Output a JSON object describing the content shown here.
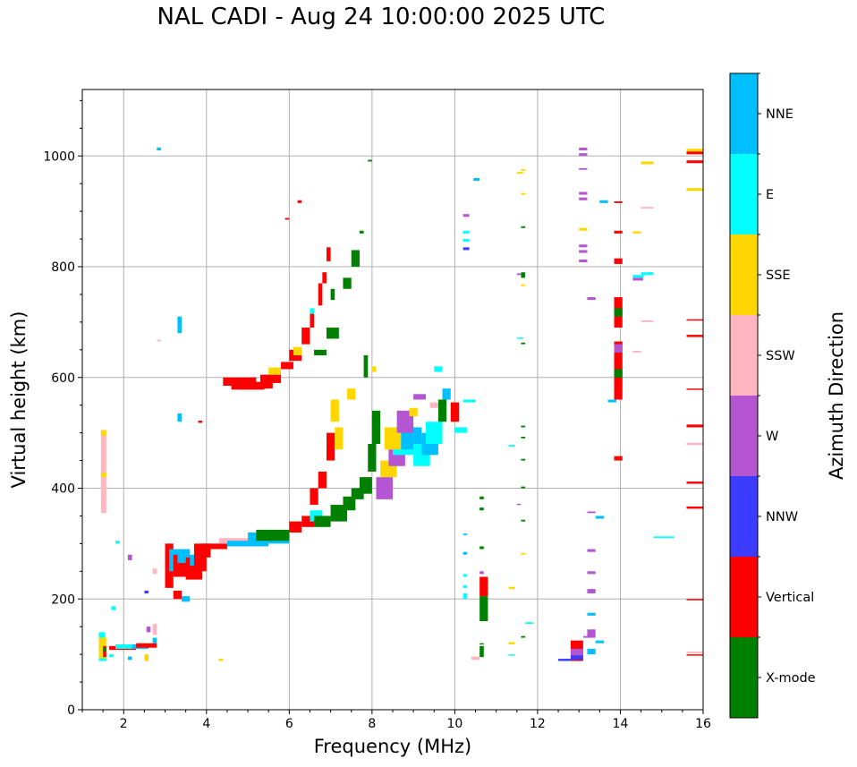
{
  "chart_data": {
    "type": "scatter",
    "subtype": "ionogram",
    "title": "NAL CADI - Aug 24 10:00:00 2025 UTC",
    "xlabel": "Frequency (MHz)",
    "ylabel": "Virtual height (km)",
    "xlim": [
      1,
      16
    ],
    "ylim": [
      0,
      1120
    ],
    "xticks": [
      2,
      4,
      6,
      8,
      10,
      12,
      14,
      16
    ],
    "yticks": [
      0,
      200,
      400,
      600,
      800,
      1000
    ],
    "x_minor_step": 0.5,
    "y_minor_step": 50,
    "grid": true,
    "colorbar": {
      "label": "Azimuth Direction",
      "placement": "right",
      "categories": [
        {
          "key": "X",
          "name": "X-mode",
          "color": "#008000"
        },
        {
          "key": "V",
          "name": "Vertical",
          "color": "#ff0000"
        },
        {
          "key": "N",
          "name": "NNW",
          "color": "#3c3cff"
        },
        {
          "key": "W",
          "name": "W",
          "color": "#b455d2"
        },
        {
          "key": "S",
          "name": "SSW",
          "color": "#ffb6c1"
        },
        {
          "key": "Y",
          "name": "SSE",
          "color": "#ffd700"
        },
        {
          "key": "E",
          "name": "E",
          "color": "#00ffff"
        },
        {
          "key": "B",
          "name": "NNE",
          "color": "#00bfff"
        }
      ]
    },
    "echo_format": "[freq_start_MHz, freq_end_MHz, height_low_km, height_high_km, direction_key]",
    "echoes": [
      [
        1.45,
        1.58,
        440,
        505,
        "S"
      ],
      [
        1.45,
        1.58,
        495,
        505,
        "Y"
      ],
      [
        1.45,
        1.58,
        355,
        440,
        "S"
      ],
      [
        1.45,
        1.58,
        420,
        428,
        "Y"
      ],
      [
        1.4,
        1.55,
        130,
        140,
        "E"
      ],
      [
        1.4,
        1.58,
        90,
        130,
        "Y"
      ],
      [
        1.5,
        1.58,
        95,
        115,
        "V"
      ],
      [
        1.5,
        1.58,
        105,
        112,
        "X"
      ],
      [
        1.4,
        1.58,
        88,
        93,
        "E"
      ],
      [
        1.65,
        2.3,
        108,
        115,
        "V"
      ],
      [
        1.65,
        1.75,
        95,
        100,
        "E"
      ],
      [
        1.8,
        2.2,
        110,
        118,
        "E"
      ],
      [
        2.2,
        2.6,
        110,
        118,
        "B"
      ],
      [
        2.3,
        2.8,
        112,
        120,
        "V"
      ],
      [
        2.5,
        2.6,
        88,
        100,
        "Y"
      ],
      [
        2.7,
        2.8,
        135,
        155,
        "S"
      ],
      [
        2.7,
        2.8,
        120,
        130,
        "B"
      ],
      [
        2.55,
        2.65,
        140,
        150,
        "W"
      ],
      [
        2.1,
        2.2,
        90,
        96,
        "B"
      ],
      [
        1.7,
        1.8,
        180,
        187,
        "E"
      ],
      [
        1.8,
        1.9,
        300,
        305,
        "E"
      ],
      [
        2.1,
        2.2,
        270,
        280,
        "W"
      ],
      [
        2.5,
        2.6,
        210,
        215,
        "N"
      ],
      [
        2.7,
        2.8,
        245,
        255,
        "S"
      ],
      [
        2.8,
        2.9,
        1010,
        1015,
        "B"
      ],
      [
        2.8,
        2.9,
        665,
        668,
        "S"
      ],
      [
        3.0,
        3.2,
        220,
        300,
        "V"
      ],
      [
        3.1,
        3.3,
        250,
        290,
        "B"
      ],
      [
        3.2,
        3.6,
        240,
        280,
        "V"
      ],
      [
        3.3,
        3.6,
        265,
        290,
        "B"
      ],
      [
        3.5,
        3.9,
        235,
        275,
        "V"
      ],
      [
        3.6,
        3.8,
        260,
        280,
        "B"
      ],
      [
        3.7,
        4.0,
        250,
        300,
        "V"
      ],
      [
        3.9,
        4.1,
        275,
        300,
        "V"
      ],
      [
        3.2,
        3.4,
        200,
        215,
        "V"
      ],
      [
        3.4,
        3.6,
        195,
        205,
        "B"
      ],
      [
        3.3,
        3.4,
        680,
        710,
        "B"
      ],
      [
        3.3,
        3.4,
        520,
        535,
        "B"
      ],
      [
        3.8,
        3.9,
        518,
        522,
        "V"
      ],
      [
        4.3,
        4.4,
        88,
        92,
        "Y"
      ],
      [
        4.0,
        4.5,
        290,
        300,
        "V"
      ],
      [
        4.3,
        5.0,
        300,
        310,
        "S"
      ],
      [
        4.5,
        5.5,
        295,
        305,
        "B"
      ],
      [
        5.0,
        6.0,
        300,
        320,
        "B"
      ],
      [
        5.2,
        6.0,
        305,
        325,
        "X"
      ],
      [
        4.4,
        5.2,
        585,
        600,
        "V"
      ],
      [
        4.6,
        5.4,
        578,
        590,
        "V"
      ],
      [
        5.0,
        5.6,
        580,
        592,
        "V"
      ],
      [
        5.3,
        5.8,
        590,
        605,
        "V"
      ],
      [
        5.5,
        5.8,
        605,
        618,
        "Y"
      ],
      [
        5.8,
        6.1,
        615,
        628,
        "V"
      ],
      [
        6.0,
        6.3,
        630,
        650,
        "V"
      ],
      [
        6.1,
        6.3,
        640,
        655,
        "Y"
      ],
      [
        6.3,
        6.5,
        660,
        690,
        "V"
      ],
      [
        6.5,
        6.6,
        690,
        715,
        "V"
      ],
      [
        6.5,
        6.6,
        715,
        725,
        "E"
      ],
      [
        6.7,
        6.8,
        730,
        770,
        "V"
      ],
      [
        6.8,
        6.9,
        770,
        790,
        "V"
      ],
      [
        6.9,
        7.0,
        810,
        835,
        "V"
      ],
      [
        6.2,
        6.3,
        915,
        920,
        "V"
      ],
      [
        5.9,
        6.0,
        885,
        888,
        "V"
      ],
      [
        7.0,
        7.1,
        740,
        760,
        "X"
      ],
      [
        7.3,
        7.5,
        760,
        780,
        "X"
      ],
      [
        7.5,
        7.7,
        800,
        830,
        "X"
      ],
      [
        7.7,
        7.8,
        860,
        865,
        "X"
      ],
      [
        7.9,
        8.0,
        990,
        993,
        "X"
      ],
      [
        6.6,
        6.9,
        640,
        650,
        "X"
      ],
      [
        6.9,
        7.2,
        670,
        690,
        "X"
      ],
      [
        6.0,
        6.3,
        320,
        340,
        "V"
      ],
      [
        6.3,
        6.6,
        330,
        350,
        "V"
      ],
      [
        6.5,
        6.8,
        340,
        360,
        "E"
      ],
      [
        6.6,
        7.0,
        330,
        350,
        "X"
      ],
      [
        7.0,
        7.4,
        340,
        370,
        "X"
      ],
      [
        7.3,
        7.6,
        360,
        385,
        "X"
      ],
      [
        7.5,
        7.8,
        380,
        400,
        "X"
      ],
      [
        7.7,
        8.0,
        390,
        420,
        "X"
      ],
      [
        7.9,
        8.1,
        430,
        480,
        "X"
      ],
      [
        8.0,
        8.2,
        480,
        540,
        "X"
      ],
      [
        6.5,
        6.7,
        370,
        400,
        "V"
      ],
      [
        6.7,
        6.9,
        400,
        430,
        "V"
      ],
      [
        6.9,
        7.1,
        450,
        500,
        "V"
      ],
      [
        7.0,
        7.2,
        520,
        560,
        "Y"
      ],
      [
        7.1,
        7.3,
        470,
        510,
        "Y"
      ],
      [
        7.4,
        7.6,
        560,
        580,
        "Y"
      ],
      [
        7.8,
        7.9,
        600,
        640,
        "X"
      ],
      [
        8.0,
        8.1,
        610,
        620,
        "Y"
      ],
      [
        8.1,
        8.5,
        380,
        420,
        "W"
      ],
      [
        8.2,
        8.6,
        420,
        450,
        "Y"
      ],
      [
        8.4,
        8.8,
        440,
        470,
        "W"
      ],
      [
        8.5,
        9.0,
        460,
        500,
        "E"
      ],
      [
        8.7,
        9.2,
        470,
        510,
        "B"
      ],
      [
        8.3,
        8.7,
        470,
        510,
        "Y"
      ],
      [
        8.6,
        9.0,
        500,
        540,
        "W"
      ],
      [
        9.0,
        9.4,
        440,
        480,
        "E"
      ],
      [
        9.2,
        9.6,
        460,
        500,
        "B"
      ],
      [
        9.3,
        9.7,
        480,
        520,
        "E"
      ],
      [
        8.9,
        9.1,
        530,
        545,
        "Y"
      ],
      [
        9.0,
        9.3,
        560,
        570,
        "W"
      ],
      [
        9.5,
        9.7,
        610,
        620,
        "E"
      ],
      [
        9.7,
        9.9,
        560,
        580,
        "B"
      ],
      [
        9.6,
        9.8,
        520,
        560,
        "X"
      ],
      [
        9.4,
        9.6,
        545,
        555,
        "S"
      ],
      [
        9.9,
        10.1,
        520,
        555,
        "V"
      ],
      [
        10.2,
        10.5,
        555,
        560,
        "E"
      ],
      [
        10.0,
        10.3,
        500,
        510,
        "E"
      ],
      [
        10.6,
        10.7,
        380,
        385,
        "X"
      ],
      [
        10.6,
        10.7,
        360,
        365,
        "X"
      ],
      [
        10.6,
        10.7,
        290,
        295,
        "X"
      ],
      [
        10.6,
        10.7,
        245,
        250,
        "W"
      ],
      [
        10.6,
        10.8,
        205,
        240,
        "V"
      ],
      [
        10.6,
        10.8,
        160,
        205,
        "X"
      ],
      [
        10.6,
        10.7,
        118,
        120,
        "X"
      ],
      [
        10.6,
        10.7,
        95,
        115,
        "X"
      ],
      [
        10.4,
        10.6,
        90,
        96,
        "S"
      ],
      [
        10.2,
        10.3,
        315,
        318,
        "B"
      ],
      [
        10.2,
        10.3,
        280,
        285,
        "B"
      ],
      [
        10.2,
        10.3,
        240,
        245,
        "E"
      ],
      [
        10.2,
        10.3,
        220,
        225,
        "E"
      ],
      [
        10.2,
        10.3,
        200,
        210,
        "E"
      ],
      [
        10.2,
        10.35,
        860,
        865,
        "E"
      ],
      [
        10.2,
        10.35,
        845,
        850,
        "E"
      ],
      [
        10.2,
        10.35,
        830,
        835,
        "N"
      ],
      [
        10.2,
        10.35,
        890,
        895,
        "W"
      ],
      [
        10.45,
        10.6,
        955,
        960,
        "B"
      ],
      [
        11.3,
        11.45,
        475,
        478,
        "E"
      ],
      [
        11.3,
        11.45,
        218,
        222,
        "Y"
      ],
      [
        11.3,
        11.45,
        118,
        122,
        "Y"
      ],
      [
        11.3,
        11.45,
        98,
        100,
        "E"
      ],
      [
        11.5,
        11.65,
        670,
        672,
        "E"
      ],
      [
        11.5,
        11.6,
        370,
        372,
        "W"
      ],
      [
        11.6,
        11.7,
        765,
        768,
        "Y"
      ],
      [
        11.6,
        11.7,
        780,
        790,
        "X"
      ],
      [
        11.6,
        11.7,
        870,
        873,
        "X"
      ],
      [
        11.6,
        11.7,
        930,
        933,
        "Y"
      ],
      [
        11.6,
        11.7,
        973,
        976,
        "Y"
      ],
      [
        11.5,
        11.65,
        968,
        971,
        "Y"
      ],
      [
        11.5,
        11.6,
        785,
        788,
        "W"
      ],
      [
        11.6,
        11.7,
        660,
        663,
        "X"
      ],
      [
        11.6,
        11.7,
        510,
        513,
        "X"
      ],
      [
        11.6,
        11.7,
        490,
        493,
        "X"
      ],
      [
        11.6,
        11.7,
        450,
        453,
        "X"
      ],
      [
        11.6,
        11.7,
        400,
        403,
        "X"
      ],
      [
        11.6,
        11.7,
        340,
        343,
        "X"
      ],
      [
        11.6,
        11.7,
        280,
        283,
        "Y"
      ],
      [
        11.6,
        11.7,
        130,
        133,
        "X"
      ],
      [
        11.7,
        11.9,
        155,
        158,
        "E"
      ],
      [
        12.5,
        12.8,
        88,
        92,
        "N"
      ],
      [
        12.8,
        13.1,
        88,
        125,
        "V"
      ],
      [
        12.8,
        13.1,
        98,
        110,
        "W"
      ],
      [
        12.8,
        13.1,
        90,
        98,
        "N"
      ],
      [
        13.0,
        13.2,
        1010,
        1015,
        "W"
      ],
      [
        13.0,
        13.2,
        1000,
        1005,
        "W"
      ],
      [
        13.0,
        13.2,
        975,
        978,
        "W"
      ],
      [
        13.0,
        13.2,
        930,
        935,
        "W"
      ],
      [
        13.0,
        13.2,
        920,
        925,
        "W"
      ],
      [
        13.0,
        13.2,
        865,
        870,
        "Y"
      ],
      [
        13.0,
        13.2,
        835,
        840,
        "W"
      ],
      [
        13.0,
        13.2,
        825,
        830,
        "W"
      ],
      [
        13.0,
        13.2,
        808,
        813,
        "W"
      ],
      [
        13.2,
        13.4,
        740,
        745,
        "W"
      ],
      [
        13.2,
        13.4,
        355,
        358,
        "W"
      ],
      [
        13.2,
        13.4,
        285,
        290,
        "W"
      ],
      [
        13.2,
        13.4,
        245,
        250,
        "W"
      ],
      [
        13.2,
        13.4,
        210,
        218,
        "W"
      ],
      [
        13.2,
        13.4,
        170,
        175,
        "B"
      ],
      [
        13.2,
        13.4,
        130,
        145,
        "W"
      ],
      [
        13.2,
        13.4,
        100,
        110,
        "B"
      ],
      [
        13.4,
        13.6,
        345,
        350,
        "B"
      ],
      [
        13.4,
        13.6,
        120,
        125,
        "B"
      ],
      [
        13.1,
        13.3,
        130,
        133,
        "W"
      ],
      [
        13.5,
        13.7,
        915,
        920,
        "B"
      ],
      [
        13.7,
        13.9,
        555,
        560,
        "B"
      ],
      [
        13.85,
        14.05,
        690,
        745,
        "V"
      ],
      [
        13.85,
        14.05,
        710,
        725,
        "X"
      ],
      [
        13.85,
        14.05,
        560,
        665,
        "V"
      ],
      [
        13.85,
        14.05,
        600,
        615,
        "X"
      ],
      [
        13.85,
        14.05,
        645,
        660,
        "W"
      ],
      [
        13.85,
        14.05,
        450,
        458,
        "V"
      ],
      [
        13.85,
        14.05,
        860,
        865,
        "V"
      ],
      [
        13.85,
        14.05,
        805,
        815,
        "V"
      ],
      [
        13.85,
        14.05,
        915,
        918,
        "V"
      ],
      [
        14.3,
        14.55,
        775,
        780,
        "W"
      ],
      [
        14.3,
        14.55,
        780,
        785,
        "E"
      ],
      [
        14.5,
        14.8,
        785,
        790,
        "E"
      ],
      [
        14.3,
        14.5,
        860,
        864,
        "Y"
      ],
      [
        14.5,
        14.8,
        985,
        990,
        "Y"
      ],
      [
        14.5,
        14.8,
        905,
        908,
        "S"
      ],
      [
        14.5,
        14.8,
        700,
        703,
        "S"
      ],
      [
        14.3,
        14.5,
        645,
        648,
        "S"
      ],
      [
        14.8,
        15.3,
        310,
        313,
        "E"
      ],
      [
        15.6,
        16.0,
        1008,
        1013,
        "Y"
      ],
      [
        15.6,
        16.0,
        1003,
        1008,
        "V"
      ],
      [
        15.6,
        16.0,
        987,
        992,
        "V"
      ],
      [
        15.6,
        16.0,
        937,
        942,
        "Y"
      ],
      [
        15.6,
        16.0,
        703,
        705,
        "V"
      ],
      [
        15.6,
        16.0,
        673,
        677,
        "V"
      ],
      [
        15.6,
        16.0,
        578,
        580,
        "V"
      ],
      [
        15.6,
        16.0,
        510,
        515,
        "V"
      ],
      [
        15.6,
        16.0,
        478,
        482,
        "S"
      ],
      [
        15.6,
        16.0,
        408,
        412,
        "V"
      ],
      [
        15.6,
        16.0,
        363,
        367,
        "V"
      ],
      [
        15.6,
        16.0,
        198,
        200,
        "V"
      ],
      [
        15.6,
        16.0,
        102,
        105,
        "S"
      ],
      [
        15.6,
        16.0,
        98,
        100,
        "V"
      ]
    ]
  }
}
